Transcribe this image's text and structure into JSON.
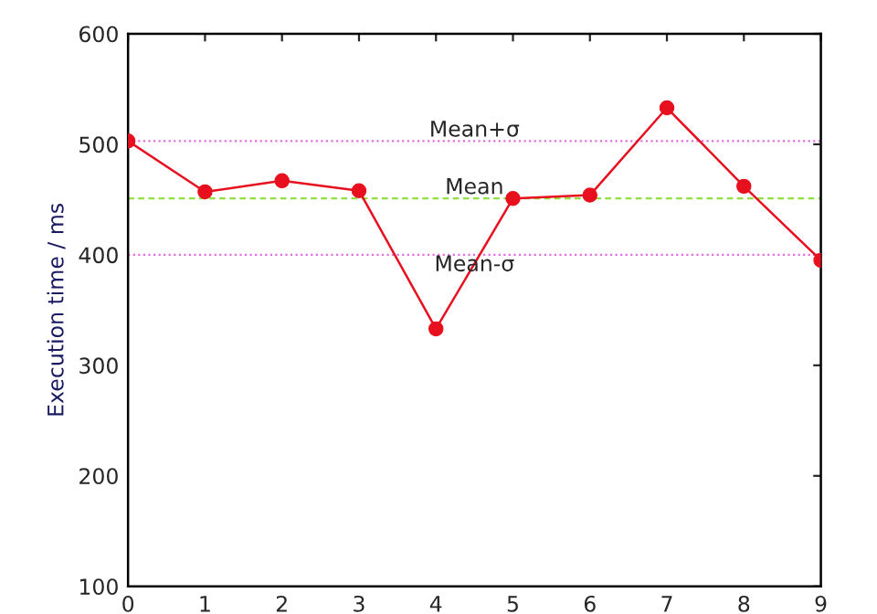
{
  "chart_data": {
    "type": "line",
    "ylabel": "Execution time / ms",
    "x": [
      0,
      1,
      2,
      3,
      4,
      5,
      6,
      7,
      8,
      9
    ],
    "series": [
      {
        "color": "#e8101e",
        "values": [
          503,
          457,
          467,
          458,
          333,
          451,
          454,
          533,
          462,
          395
        ]
      }
    ],
    "marker": "circle",
    "line_style": "solid",
    "xlim": [
      0,
      9
    ],
    "xticks": [
      0,
      1,
      2,
      3,
      4,
      5,
      6,
      7,
      8,
      9
    ],
    "ylim": [
      100,
      600
    ],
    "yticks": [
      100,
      200,
      300,
      400,
      500,
      600
    ],
    "grid": false,
    "legend": false,
    "ref_lines": [
      {
        "axis": "y",
        "value": 503,
        "label": "Mean+σ",
        "color": "#e070e0",
        "line_style": "dotted"
      },
      {
        "axis": "y",
        "value": 451,
        "label": "Mean",
        "color": "#90e040",
        "line_style": "dashed"
      },
      {
        "axis": "y",
        "value": 400,
        "label": "Mean-σ",
        "color": "#e070e0",
        "line_style": "dotted"
      }
    ]
  }
}
